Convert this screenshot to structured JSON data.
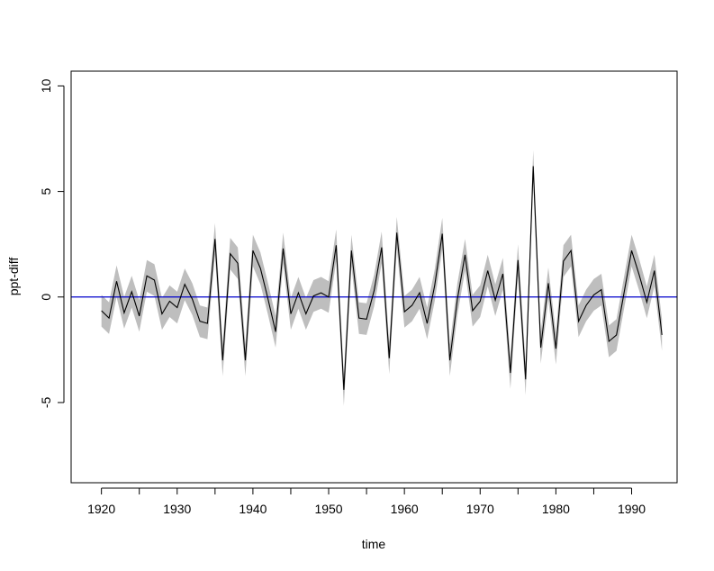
{
  "chart_data": {
    "type": "line",
    "title": "",
    "xlabel": "time",
    "ylabel": "ppt-diff",
    "xlim": [
      1916,
      1996
    ],
    "ylim": [
      -8.8,
      10.7
    ],
    "x_ticks": [
      1920,
      1930,
      1940,
      1950,
      1960,
      1970,
      1980,
      1990
    ],
    "x_tick_labels": [
      "1920",
      "1930",
      "1940",
      "1950",
      "1960",
      "1970",
      "1980",
      "1990"
    ],
    "y_ticks": [
      -5,
      0,
      5,
      10
    ],
    "y_tick_labels": [
      "-5",
      "0",
      "5",
      "10"
    ],
    "grid": false,
    "reference_line": {
      "y": 0,
      "color": "#0000cc"
    },
    "band_color": "#bebebe",
    "line_color": "#000000",
    "band_halfwidth": 0.75,
    "x": [
      1920,
      1921,
      1922,
      1923,
      1924,
      1925,
      1926,
      1927,
      1928,
      1929,
      1930,
      1931,
      1932,
      1933,
      1934,
      1935,
      1936,
      1937,
      1938,
      1939,
      1940,
      1941,
      1942,
      1943,
      1944,
      1945,
      1946,
      1947,
      1948,
      1949,
      1950,
      1951,
      1952,
      1953,
      1954,
      1955,
      1956,
      1957,
      1958,
      1959,
      1960,
      1961,
      1962,
      1963,
      1964,
      1965,
      1966,
      1967,
      1968,
      1969,
      1970,
      1971,
      1972,
      1973,
      1974,
      1975,
      1976,
      1977,
      1978,
      1979,
      1980,
      1981,
      1982,
      1983,
      1984,
      1985,
      1986,
      1987,
      1988,
      1989,
      1990,
      1991,
      1992,
      1993,
      1994
    ],
    "values": [
      -0.65,
      -1.0,
      0.75,
      -0.75,
      0.25,
      -0.9,
      1.0,
      0.8,
      -0.8,
      -0.2,
      -0.5,
      0.6,
      -0.1,
      -1.15,
      -1.25,
      2.75,
      -3.0,
      2.05,
      1.6,
      -3.0,
      2.2,
      1.35,
      -0.1,
      -1.65,
      2.3,
      -0.8,
      0.2,
      -0.8,
      0.05,
      0.2,
      0.0,
      2.45,
      -4.4,
      2.2,
      -1.0,
      -1.05,
      0.3,
      2.35,
      -2.9,
      3.05,
      -0.7,
      -0.4,
      0.2,
      -1.25,
      0.55,
      3.0,
      -3.0,
      -0.1,
      2.0,
      -0.65,
      -0.2,
      1.25,
      -0.15,
      1.1,
      -3.6,
      1.75,
      -3.9,
      6.2,
      -2.4,
      0.65,
      -2.45,
      1.7,
      2.2,
      -1.15,
      -0.4,
      0.1,
      0.35,
      -2.1,
      -1.8,
      0.2,
      2.2,
      1.05,
      -0.25,
      1.25,
      -1.8
    ]
  }
}
